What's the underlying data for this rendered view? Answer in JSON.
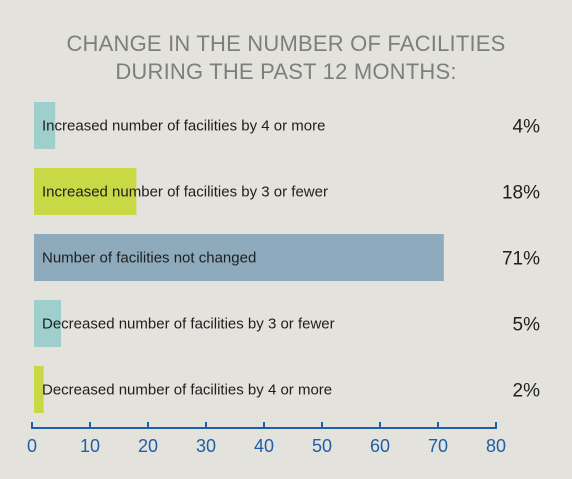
{
  "chart_data": {
    "type": "bar",
    "orientation": "horizontal",
    "title_lines": [
      "CHANGE IN THE NUMBER OF FACILITIES",
      "DURING THE PAST 12 MONTHS:"
    ],
    "categories": [
      "Increased number of facilities by 4 or more",
      "Increased number of facilities by 3 or fewer",
      "Number of facilities not changed",
      "Decreased number of facilities by 3 or fewer",
      "Decreased number of facilities by 4 or more"
    ],
    "values": [
      4,
      18,
      71,
      5,
      2
    ],
    "value_labels": [
      "4%",
      "18%",
      "71%",
      "5%",
      "2%"
    ],
    "bar_colors": [
      "#9ecfcc",
      "#c9d845",
      "#8eabbd",
      "#9ecfcc",
      "#c9d845"
    ],
    "xlim": [
      0,
      80
    ],
    "xticks": [
      0,
      10,
      20,
      30,
      40,
      50,
      60,
      70,
      80
    ],
    "grid": false,
    "axis_color": "#1f5fa8"
  }
}
